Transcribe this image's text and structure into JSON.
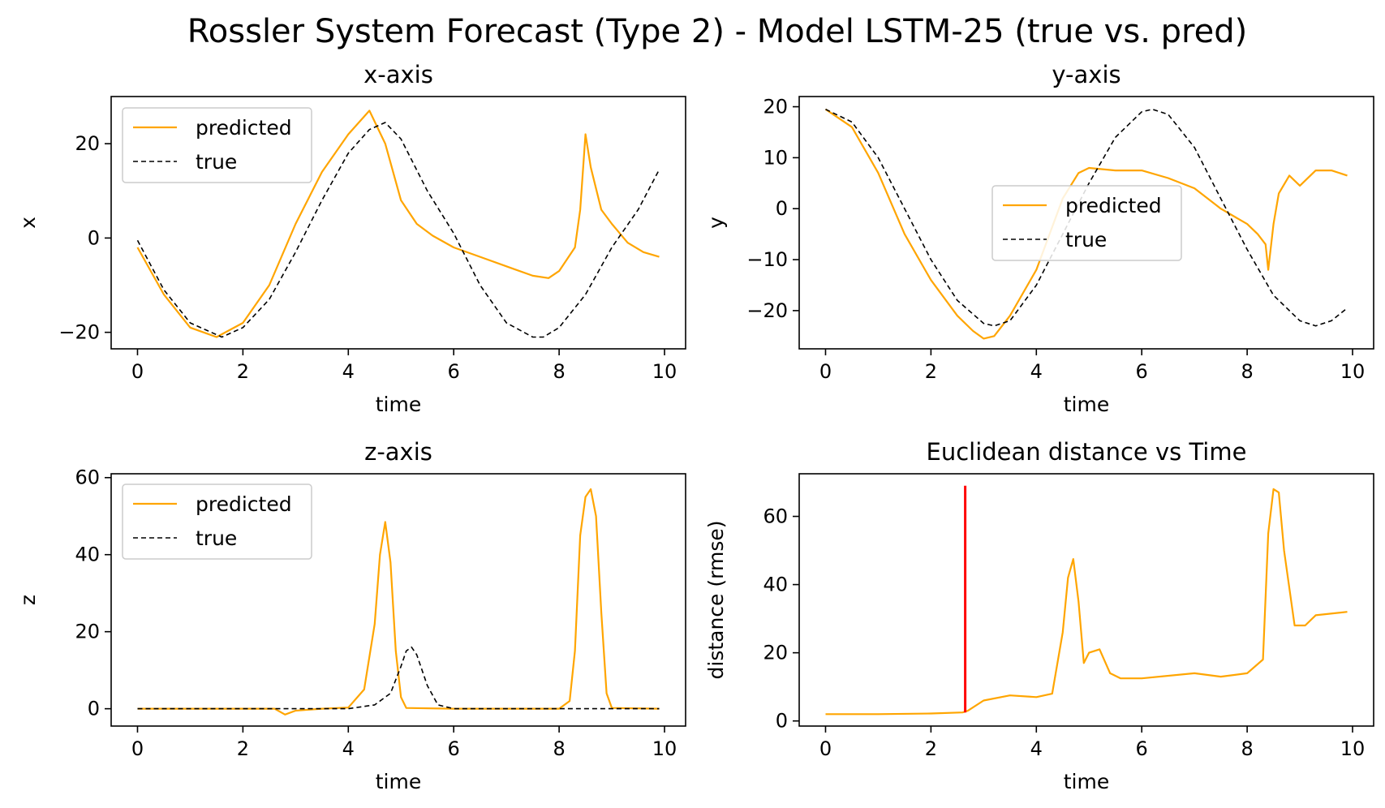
{
  "figure": {
    "title": "Rossler System Forecast (Type 2) - Model LSTM-25 (true vs. pred)"
  },
  "colors": {
    "predicted": "#ffa500",
    "true": "#000000",
    "marker": "#ff0000"
  },
  "chart_data": [
    {
      "id": "x",
      "type": "line",
      "title": "x-axis",
      "xlabel": "time",
      "ylabel": "x",
      "xlim": [
        -0.5,
        10.4
      ],
      "ylim": [
        -23.5,
        30
      ],
      "xticks": [
        0,
        2,
        4,
        6,
        8,
        10
      ],
      "yticks": [
        -20,
        0,
        20
      ],
      "legend": "upper left",
      "series": [
        {
          "name": "predicted",
          "style": "solid",
          "x": [
            0,
            0.5,
            1,
            1.5,
            2,
            2.5,
            3,
            3.5,
            4,
            4.4,
            4.7,
            5,
            5.3,
            5.6,
            6,
            6.5,
            7,
            7.5,
            7.8,
            8,
            8.3,
            8.4,
            8.5,
            8.6,
            8.8,
            9,
            9.3,
            9.6,
            9.9
          ],
          "y": [
            -2,
            -12,
            -19,
            -21,
            -18,
            -10,
            3,
            14,
            22,
            27,
            20,
            8,
            3,
            0.5,
            -2,
            -4,
            -6,
            -8,
            -8.5,
            -7,
            -2,
            6,
            22,
            15,
            6,
            3,
            -1,
            -3,
            -4
          ]
        },
        {
          "name": "true",
          "style": "dashed",
          "x": [
            0,
            0.5,
            1,
            1.6,
            2,
            2.5,
            3,
            3.5,
            4,
            4.4,
            4.7,
            5,
            5.5,
            6,
            6.5,
            7,
            7.5,
            7.7,
            8,
            8.5,
            9,
            9.5,
            9.9
          ],
          "y": [
            -0.5,
            -11,
            -18,
            -21,
            -19,
            -13,
            -3,
            8,
            18,
            23,
            24.5,
            21,
            10,
            1,
            -10,
            -18,
            -21,
            -21,
            -19,
            -12,
            -2,
            6,
            14.5
          ]
        }
      ]
    },
    {
      "id": "y",
      "type": "line",
      "title": "y-axis",
      "xlabel": "time",
      "ylabel": "y",
      "xlim": [
        -0.5,
        10.4
      ],
      "ylim": [
        -27.5,
        22
      ],
      "xticks": [
        0,
        2,
        4,
        6,
        8,
        10
      ],
      "yticks": [
        -20,
        -10,
        0,
        10,
        20
      ],
      "legend": "center",
      "series": [
        {
          "name": "predicted",
          "style": "solid",
          "x": [
            0,
            0.5,
            1,
            1.5,
            2,
            2.5,
            2.8,
            3,
            3.2,
            3.5,
            4,
            4.5,
            4.8,
            5,
            5.5,
            6,
            6.5,
            7,
            7.5,
            8,
            8.2,
            8.35,
            8.4,
            8.5,
            8.6,
            8.8,
            9,
            9.3,
            9.6,
            9.9
          ],
          "y": [
            19.5,
            16,
            7,
            -5,
            -14,
            -21,
            -24,
            -25.5,
            -25,
            -21,
            -12,
            2,
            7,
            8,
            7.5,
            7.5,
            6,
            4,
            0,
            -3,
            -5,
            -7,
            -12,
            -3,
            3,
            6.5,
            4.5,
            7.5,
            7.5,
            6.5
          ]
        },
        {
          "name": "true",
          "style": "dashed",
          "x": [
            0,
            0.5,
            1,
            1.5,
            2,
            2.5,
            3,
            3.2,
            3.5,
            4,
            4.5,
            5,
            5.5,
            6,
            6.2,
            6.5,
            7,
            7.5,
            8,
            8.5,
            9,
            9.3,
            9.6,
            9.9
          ],
          "y": [
            19.5,
            17,
            10,
            0,
            -10,
            -18,
            -22.5,
            -23,
            -22,
            -15,
            -5,
            5,
            14,
            19,
            19.5,
            18.5,
            12,
            2,
            -8,
            -17,
            -22,
            -23,
            -22,
            -19.5
          ]
        }
      ]
    },
    {
      "id": "z",
      "type": "line",
      "title": "z-axis",
      "xlabel": "time",
      "ylabel": "z",
      "xlim": [
        -0.5,
        10.4
      ],
      "ylim": [
        -4.5,
        61
      ],
      "xticks": [
        0,
        2,
        4,
        6,
        8,
        10
      ],
      "yticks": [
        0,
        20,
        40,
        60
      ],
      "legend": "upper left",
      "series": [
        {
          "name": "predicted",
          "style": "solid",
          "x": [
            0,
            2.6,
            2.8,
            3,
            3.5,
            4,
            4.3,
            4.5,
            4.6,
            4.7,
            4.8,
            4.9,
            5,
            5.1,
            6,
            8,
            8.2,
            8.3,
            8.4,
            8.5,
            8.6,
            8.7,
            8.8,
            8.9,
            9,
            9.9
          ],
          "y": [
            0,
            0,
            -1.5,
            -0.5,
            0,
            0.3,
            5,
            22,
            40,
            48.5,
            38,
            15,
            3,
            0.2,
            0,
            0,
            2,
            15,
            45,
            55,
            57,
            50,
            25,
            4,
            0.2,
            0
          ]
        },
        {
          "name": "true",
          "style": "dashed",
          "x": [
            0,
            4,
            4.5,
            4.8,
            5,
            5.1,
            5.2,
            5.3,
            5.5,
            5.7,
            6,
            9.9
          ],
          "y": [
            0,
            0,
            1,
            4,
            11,
            15,
            16,
            14,
            6,
            1,
            0,
            0
          ]
        }
      ]
    },
    {
      "id": "dist",
      "type": "line",
      "title": "Euclidean distance vs Time",
      "xlabel": "time",
      "ylabel": "distance (rmse)",
      "xlim": [
        -0.5,
        10.4
      ],
      "ylim": [
        -1.5,
        72.5
      ],
      "xticks": [
        0,
        2,
        4,
        6,
        8,
        10
      ],
      "yticks": [
        0,
        20,
        40,
        60
      ],
      "marker_x": 2.65,
      "marker_y": [
        2.5,
        69
      ],
      "series": [
        {
          "name": "",
          "style": "solid",
          "x": [
            0,
            1,
            2,
            2.6,
            2.7,
            3,
            3.5,
            4,
            4.3,
            4.5,
            4.6,
            4.7,
            4.8,
            4.9,
            5,
            5.2,
            5.4,
            5.6,
            6,
            7,
            7.5,
            8,
            8.3,
            8.4,
            8.5,
            8.6,
            8.7,
            8.9,
            9.1,
            9.3,
            9.9
          ],
          "y": [
            2,
            2,
            2.2,
            2.5,
            3,
            6,
            7.5,
            7,
            8,
            26,
            42,
            47.5,
            35,
            17,
            20,
            21,
            14,
            12.5,
            12.5,
            14,
            13,
            14,
            18,
            55,
            68,
            67,
            50,
            28,
            28,
            31,
            32
          ]
        }
      ]
    }
  ]
}
